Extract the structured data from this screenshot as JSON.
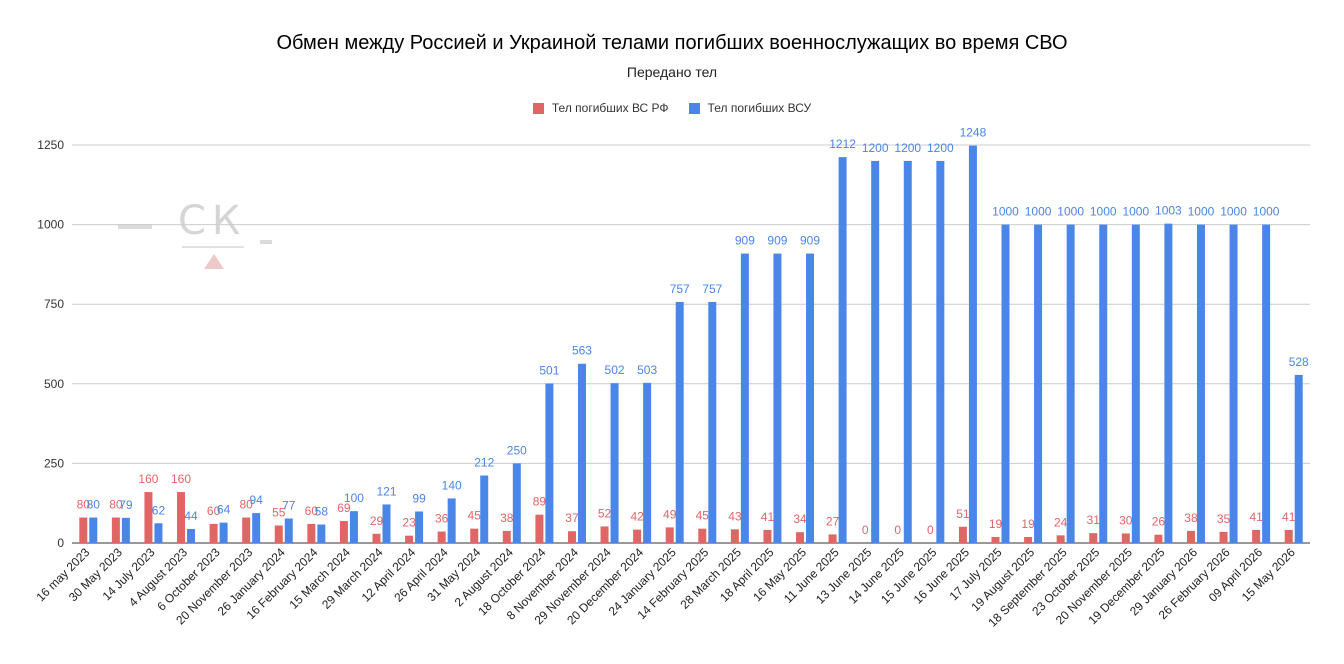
{
  "title": "Обмен между Россией и Украиной телами погибших военнослужащих во время СВО",
  "subtitle": "Передано тел",
  "watermark": {
    "text": "СК"
  },
  "colors": {
    "ru": "#e06666",
    "ua": "#4a86e8",
    "grid": "#cccccc",
    "axis": "#333333"
  },
  "chart_data": {
    "type": "bar",
    "title": "Обмен между Россией и Украиной телами погибших военнослужащих во время СВО",
    "subtitle": "Передано тел",
    "legend_position": "top-center",
    "grid": true,
    "ylim": [
      0,
      1250
    ],
    "yticks": [
      "0",
      "250",
      "500",
      "750",
      "1000",
      "1250"
    ],
    "categories": [
      "16 may 2023",
      "30 May 2023",
      "14 July 2023",
      "4 August 2023",
      "6 October 2023",
      "20 November 2023",
      "26 January 2024",
      "16 February 2024",
      "15 March 2024",
      "29 March 2024",
      "12 April 2024",
      "26 April 2024",
      "31 May 2024",
      "2 August 2024",
      "18 October 2024",
      "8 November 2024",
      "29 November 2024",
      "20 December 2024",
      "24 January 2025",
      "14 February 2025",
      "28 March 2025",
      "18 April 2025",
      "16 May 2025",
      "11 June 2025",
      "13 June 2025",
      "14 June 2025",
      "15 June 2025",
      "16 June 2025",
      "17 July 2025",
      "19 August 2025",
      "18 September 2025",
      "23 October 2025",
      "20 November 2025",
      "19 December 2025",
      "29 January 2026",
      "26 February 2026",
      "09 April 2026",
      "15 May 2026"
    ],
    "series": [
      {
        "name": "Тел погибших ВС  РФ",
        "color": "#e06666",
        "values": [
          80,
          80,
          160,
          160,
          60,
          80,
          55,
          60,
          69,
          29,
          23,
          36,
          45,
          38,
          89,
          37,
          52,
          42,
          49,
          45,
          43,
          41,
          34,
          27,
          0,
          0,
          0,
          51,
          19,
          19,
          24,
          31,
          30,
          26,
          38,
          35,
          41,
          41
        ],
        "labels": [
          "80",
          "80",
          "160",
          "160",
          "60",
          "80",
          "55",
          "60",
          "69",
          "29",
          "23",
          "36",
          "45",
          "38",
          "89",
          "37",
          "52",
          "42",
          "49",
          "45",
          "43",
          "41",
          "34",
          "27",
          "0",
          "0",
          "0",
          "51",
          "19",
          "19",
          "24",
          "31",
          "30",
          "26",
          "38",
          "35",
          "41",
          "41"
        ]
      },
      {
        "name": "Тел погибших ВСУ",
        "color": "#4a86e8",
        "values": [
          80,
          79,
          62,
          44,
          64,
          94,
          77,
          58,
          100,
          121,
          99,
          140,
          212,
          250,
          501,
          563,
          502,
          503,
          757,
          757,
          909,
          909,
          909,
          1212,
          1200,
          1200,
          1200,
          1248,
          1000,
          1000,
          1000,
          1000,
          1000,
          1003,
          1000,
          1000,
          1000,
          528
        ],
        "labels": [
          "80",
          "79",
          "62",
          "44",
          "64",
          "94",
          "77",
          "58",
          "100",
          "121",
          "99",
          "140",
          "212",
          "250",
          "501",
          "563",
          "502",
          "503",
          "757",
          "757",
          "909",
          "909",
          "909",
          "1212",
          "1200",
          "1200",
          "1200",
          "1248",
          "1000",
          "1000",
          "1000",
          "1000",
          "1000",
          "1003",
          "1000",
          "1000",
          "1000",
          "528"
        ]
      }
    ]
  }
}
